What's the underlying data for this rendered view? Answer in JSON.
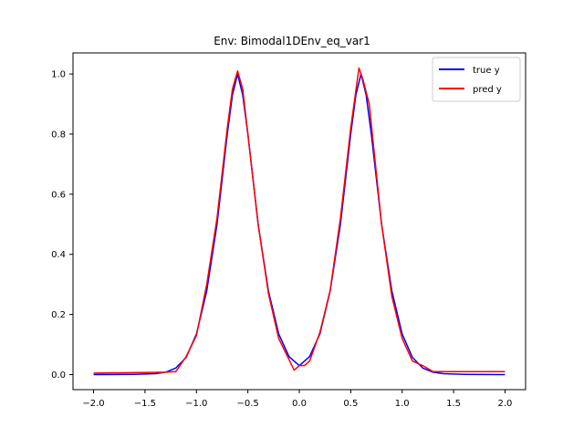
{
  "chart_data": {
    "type": "line",
    "title": "Env: Bimodal1DEnv_eq_var1",
    "xlabel": "",
    "ylabel": "",
    "xlim": [
      -2.2,
      2.2
    ],
    "ylim": [
      -0.05,
      1.07
    ],
    "x_ticks": [
      -2.0,
      -1.5,
      -1.0,
      -0.5,
      0.0,
      0.5,
      1.0,
      1.5,
      2.0
    ],
    "x_tick_labels": [
      "−2.0",
      "−1.5",
      "−1.0",
      "−0.5",
      "0.0",
      "0.5",
      "1.0",
      "1.5",
      "2.0"
    ],
    "y_ticks": [
      0.0,
      0.2,
      0.4,
      0.6,
      0.8,
      1.0
    ],
    "y_tick_labels": [
      "0.0",
      "0.2",
      "0.4",
      "0.6",
      "0.8",
      "1.0"
    ],
    "grid": false,
    "legend_position": "top-right",
    "series": [
      {
        "name": "true y",
        "color": "#0000ff",
        "x": [
          -2.0,
          -1.6,
          -1.4,
          -1.3,
          -1.2,
          -1.1,
          -1.0,
          -0.9,
          -0.8,
          -0.7,
          -0.65,
          -0.6,
          -0.55,
          -0.5,
          -0.4,
          -0.3,
          -0.2,
          -0.1,
          0.0,
          0.1,
          0.2,
          0.3,
          0.4,
          0.5,
          0.55,
          0.6,
          0.65,
          0.7,
          0.8,
          0.9,
          1.0,
          1.1,
          1.2,
          1.3,
          1.4,
          1.6,
          2.0
        ],
        "y": [
          0.0,
          0.001,
          0.003,
          0.008,
          0.022,
          0.057,
          0.135,
          0.278,
          0.5,
          0.8,
          0.93,
          1.0,
          0.93,
          0.8,
          0.5,
          0.278,
          0.135,
          0.06,
          0.03,
          0.06,
          0.135,
          0.278,
          0.5,
          0.8,
          0.93,
          1.0,
          0.93,
          0.8,
          0.5,
          0.278,
          0.135,
          0.057,
          0.022,
          0.008,
          0.003,
          0.001,
          0.0
        ]
      },
      {
        "name": "pred y",
        "color": "#ff0000",
        "x": [
          -2.0,
          -1.3,
          -1.2,
          -1.1,
          -1.0,
          -0.9,
          -0.8,
          -0.7,
          -0.65,
          -0.6,
          -0.55,
          -0.5,
          -0.4,
          -0.3,
          -0.2,
          -0.1,
          -0.05,
          0.0,
          0.05,
          0.1,
          0.2,
          0.3,
          0.4,
          0.5,
          0.58,
          0.62,
          0.68,
          0.8,
          0.9,
          1.0,
          1.1,
          1.2,
          1.3,
          2.0
        ],
        "y": [
          0.005,
          0.008,
          0.01,
          0.06,
          0.13,
          0.3,
          0.52,
          0.82,
          0.95,
          1.01,
          0.95,
          0.8,
          0.5,
          0.27,
          0.12,
          0.05,
          0.015,
          0.03,
          0.03,
          0.045,
          0.14,
          0.28,
          0.52,
          0.82,
          1.02,
          0.98,
          0.9,
          0.5,
          0.26,
          0.12,
          0.045,
          0.03,
          0.01,
          0.01
        ]
      }
    ]
  }
}
